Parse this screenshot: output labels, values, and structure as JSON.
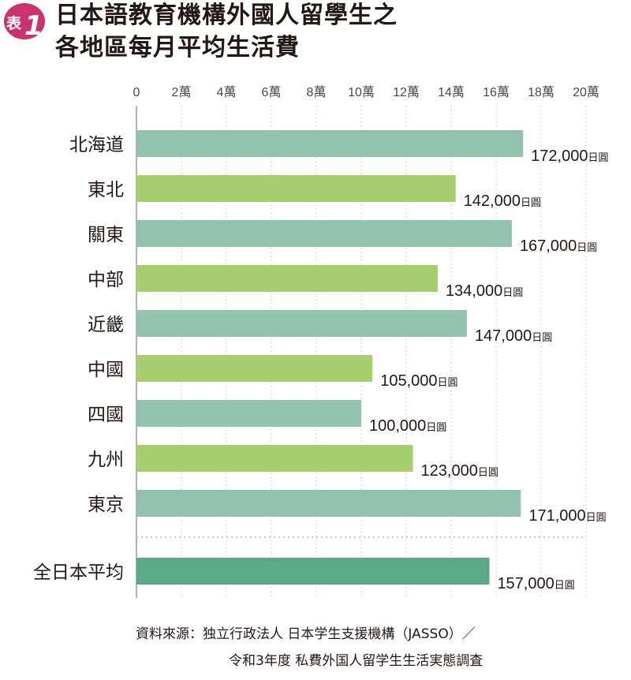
{
  "badge": {
    "prefix": "表",
    "number": "1",
    "color": "#c8326e"
  },
  "title": {
    "line1": "日本語教育機構外國人留學生之",
    "line2": "各地區每月平均生活費"
  },
  "source": {
    "line1": "資料來源：独立行政法人 日本学生支援機構（JASSO）／",
    "line2": "令和3年度 私費外国人留学生生活実態調査"
  },
  "chart_data": {
    "type": "bar",
    "orientation": "horizontal",
    "xlim": [
      0,
      200000
    ],
    "ticks": [
      {
        "value": 0,
        "label": "0"
      },
      {
        "value": 20000,
        "label": "2萬"
      },
      {
        "value": 40000,
        "label": "4萬"
      },
      {
        "value": 60000,
        "label": "6萬"
      },
      {
        "value": 80000,
        "label": "8萬"
      },
      {
        "value": 100000,
        "label": "10萬"
      },
      {
        "value": 120000,
        "label": "12萬"
      },
      {
        "value": 140000,
        "label": "14萬"
      },
      {
        "value": 160000,
        "label": "16萬"
      },
      {
        "value": 180000,
        "label": "18萬"
      },
      {
        "value": 200000,
        "label": "20萬"
      }
    ],
    "unit": "日圓",
    "grid": true,
    "categories": [
      "北海道",
      "東北",
      "關東",
      "中部",
      "近畿",
      "中國",
      "四國",
      "九州",
      "東京",
      "全日本平均"
    ],
    "values": [
      172000,
      142000,
      167000,
      134000,
      147000,
      105000,
      100000,
      123000,
      171000,
      157000
    ],
    "value_labels": [
      "172,000",
      "142,000",
      "167,000",
      "134,000",
      "147,000",
      "105,000",
      "100,000",
      "123,000",
      "171,000",
      "157,000"
    ],
    "colors": {
      "teal": "#93c3ae",
      "green": "#a6cf70",
      "average": "#5aa886",
      "grid": "#cfcfcf",
      "axis": "#9a9a9a"
    }
  }
}
